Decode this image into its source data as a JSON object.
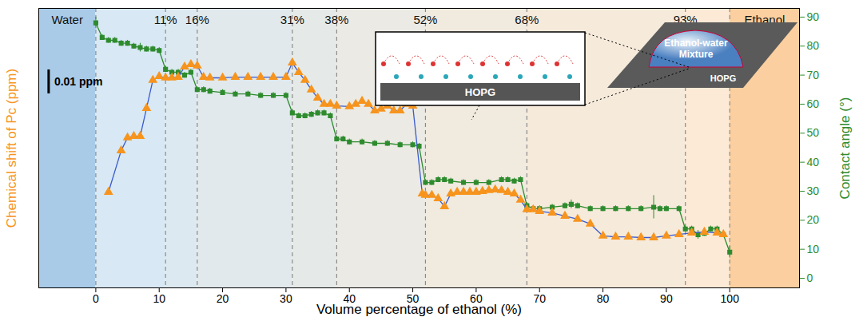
{
  "chart_data": {
    "type": "line",
    "x_label": "Volume percentage of ethanol (%)",
    "y_label": "Chemical shift of Pc (ppm)",
    "y2_label": "Contact angle (°)",
    "xlim": [
      -9,
      111
    ],
    "xticks": [
      0,
      10,
      20,
      30,
      40,
      50,
      60,
      70,
      80,
      90,
      100
    ],
    "ylim": [
      -0.004,
      0.1127
    ],
    "yticks": [],
    "y2lim": [
      -3.3,
      93
    ],
    "y2ticks": [
      0,
      10,
      20,
      30,
      40,
      50,
      60,
      70,
      80,
      90
    ],
    "regions": [
      {
        "label": "Water",
        "to": 0
      },
      {
        "label": "Ethanol",
        "from": 100
      }
    ],
    "dividers": [
      {
        "value": 11,
        "label": "11%"
      },
      {
        "value": 16,
        "label": "16%"
      },
      {
        "value": 31,
        "label": "31%"
      },
      {
        "value": 38,
        "label": "38%"
      },
      {
        "value": 52,
        "label": "52%"
      },
      {
        "value": 68,
        "label": "68%"
      },
      {
        "value": 93,
        "label": "93%"
      }
    ],
    "scale_bar": {
      "value": 0.01,
      "label": "0.01 ppm"
    },
    "inset": {
      "box_label": "HOPG",
      "droplet_label": "Ethanol-water Mixture",
      "sheet_label": "HOPG"
    },
    "series": [
      {
        "name": "Contact angle (°)",
        "axis": "y2",
        "color": "#2e8b2e",
        "marker": "square",
        "x": [
          0,
          1,
          2,
          3,
          4,
          5,
          6,
          7,
          8,
          9,
          10,
          11,
          12,
          13,
          14,
          15,
          16,
          17,
          18,
          20,
          22,
          24,
          26,
          28,
          30,
          31,
          32,
          33,
          34,
          35,
          36,
          37,
          38,
          39,
          40,
          42,
          44,
          46,
          48,
          50,
          51,
          52,
          53,
          54,
          55,
          56,
          58,
          60,
          62,
          64,
          65,
          66,
          67,
          68,
          69,
          70,
          72,
          74,
          75,
          76,
          78,
          80,
          82,
          84,
          86,
          88,
          89,
          90,
          92,
          93,
          94,
          95,
          96,
          97,
          98,
          99,
          100
        ],
        "values": [
          88,
          83,
          82,
          82,
          81,
          81,
          80,
          79.5,
          79,
          79,
          78.5,
          72,
          71,
          71,
          70,
          71,
          65,
          65,
          64.5,
          64,
          63.5,
          63.5,
          63,
          63,
          63,
          57,
          56,
          56,
          56.5,
          57,
          57,
          56,
          48,
          48,
          47,
          47,
          46.5,
          46.5,
          46,
          46,
          45.5,
          33,
          33,
          34,
          34,
          33.5,
          33,
          33,
          33,
          34,
          34,
          33.5,
          34,
          25,
          24,
          24,
          24.5,
          25,
          25.5,
          25,
          24,
          24,
          24,
          24,
          24,
          24.5,
          24,
          24,
          24,
          17,
          17,
          15,
          15.5,
          17,
          17,
          15,
          9
        ],
        "errors": [
          2,
          1,
          1,
          1,
          1,
          1,
          1,
          1.5,
          1,
          1,
          1,
          1,
          1,
          1,
          1,
          1,
          1,
          1,
          1,
          1,
          1,
          1,
          1,
          1,
          1,
          1,
          1,
          1,
          1,
          1,
          1,
          1,
          1,
          1,
          1,
          1,
          1,
          1,
          1,
          1,
          1,
          1,
          1,
          1,
          1,
          1,
          1,
          1,
          1,
          1,
          1,
          1,
          1,
          1,
          1,
          1,
          1,
          1,
          1.5,
          1,
          1,
          1,
          1,
          1,
          1,
          4,
          1,
          1,
          1,
          1,
          1,
          1.5,
          1,
          1,
          1,
          1,
          2
        ]
      },
      {
        "name": "Chemical shift of Pc (ppm)",
        "axis": "y",
        "color": "#f7941d",
        "marker": "triangle",
        "x": [
          2,
          4,
          5,
          6,
          7,
          8,
          9,
          10,
          11,
          12,
          13,
          14,
          15,
          16,
          17,
          18,
          20,
          22,
          24,
          26,
          28,
          30,
          31,
          32,
          33,
          34,
          35,
          36,
          37,
          38,
          40,
          41,
          42,
          43,
          44,
          45,
          46,
          47,
          48,
          49,
          50,
          51.5,
          52,
          53,
          54,
          55,
          56,
          57,
          58,
          59,
          60,
          61,
          62,
          63,
          64,
          65,
          66,
          67,
          68,
          69,
          70,
          72,
          74,
          76,
          78,
          80,
          82,
          84,
          86,
          88,
          90,
          92,
          94,
          96,
          98,
          99
        ],
        "values": [
          0.036,
          0.0533,
          0.0587,
          0.0593,
          0.0593,
          0.071,
          0.0827,
          0.0843,
          0.0837,
          0.0837,
          0.084,
          0.0883,
          0.0893,
          0.0887,
          0.084,
          0.0837,
          0.0837,
          0.084,
          0.084,
          0.084,
          0.084,
          0.084,
          0.09,
          0.086,
          0.0827,
          0.0787,
          0.0753,
          0.0727,
          0.0727,
          0.072,
          0.0717,
          0.0727,
          0.074,
          0.0727,
          0.07,
          0.0707,
          0.072,
          0.07,
          0.07,
          0.0727,
          0.072,
          0.0353,
          0.0347,
          0.0347,
          0.0333,
          0.03,
          0.0353,
          0.036,
          0.036,
          0.036,
          0.036,
          0.0363,
          0.0367,
          0.037,
          0.0367,
          0.036,
          0.0353,
          0.0327,
          0.0287,
          0.0287,
          0.028,
          0.0273,
          0.026,
          0.0247,
          0.0227,
          0.0177,
          0.0173,
          0.0173,
          0.017,
          0.017,
          0.0177,
          0.0183,
          0.019,
          0.0193,
          0.019,
          0.0183
        ]
      }
    ]
  }
}
